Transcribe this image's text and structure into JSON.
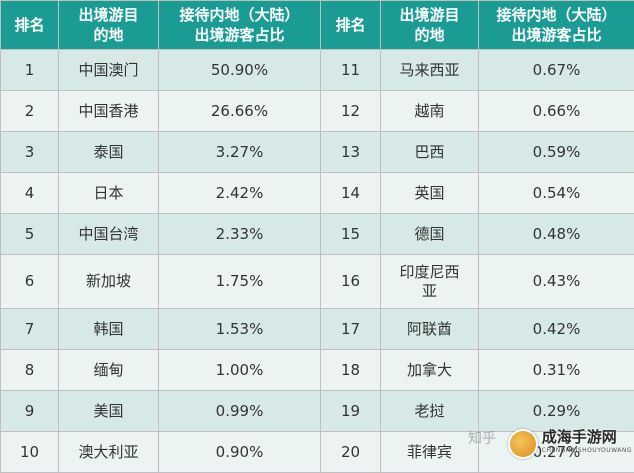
{
  "headers": {
    "rank": "排名",
    "destination_line1": "出境游目",
    "destination_line2": "的地",
    "share_line1": "接待内地（大陆）",
    "share_line2": "出境游客占比"
  },
  "colors": {
    "header_bg": "#1a9c95",
    "row_odd": "#d6e9e6",
    "row_even": "#ebf4f2"
  },
  "rows": [
    {
      "l_rank": "1",
      "l_dest": "中国澳门",
      "l_share": "50.90%",
      "r_rank": "11",
      "r_dest": "马来西亚",
      "r_share": "0.67%"
    },
    {
      "l_rank": "2",
      "l_dest": "中国香港",
      "l_share": "26.66%",
      "r_rank": "12",
      "r_dest": "越南",
      "r_share": "0.66%"
    },
    {
      "l_rank": "3",
      "l_dest": "泰国",
      "l_share": "3.27%",
      "r_rank": "13",
      "r_dest": "巴西",
      "r_share": "0.59%"
    },
    {
      "l_rank": "4",
      "l_dest": "日本",
      "l_share": "2.42%",
      "r_rank": "14",
      "r_dest": "英国",
      "r_share": "0.54%"
    },
    {
      "l_rank": "5",
      "l_dest": "中国台湾",
      "l_share": "2.33%",
      "r_rank": "15",
      "r_dest": "德国",
      "r_share": "0.48%"
    },
    {
      "l_rank": "6",
      "l_dest": "新加坡",
      "l_share": "1.75%",
      "r_rank": "16",
      "r_dest": "印度尼西亚",
      "r_share": "0.43%"
    },
    {
      "l_rank": "7",
      "l_dest": "韩国",
      "l_share": "1.53%",
      "r_rank": "17",
      "r_dest": "阿联酋",
      "r_share": "0.42%"
    },
    {
      "l_rank": "8",
      "l_dest": "缅甸",
      "l_share": "1.00%",
      "r_rank": "18",
      "r_dest": "加拿大",
      "r_share": "0.31%"
    },
    {
      "l_rank": "9",
      "l_dest": "美国",
      "l_share": "0.99%",
      "r_rank": "19",
      "r_dest": "老挝",
      "r_share": "0.29%"
    },
    {
      "l_rank": "10",
      "l_dest": "澳大利亚",
      "l_share": "0.90%",
      "r_rank": "20",
      "r_dest": "菲律宾",
      "r_share": "0.27%"
    }
  ],
  "watermark": {
    "zhihu": "知乎",
    "logo_name": "成海手游网",
    "logo_sub": "CHENGHAISHOUYOUWANG"
  }
}
